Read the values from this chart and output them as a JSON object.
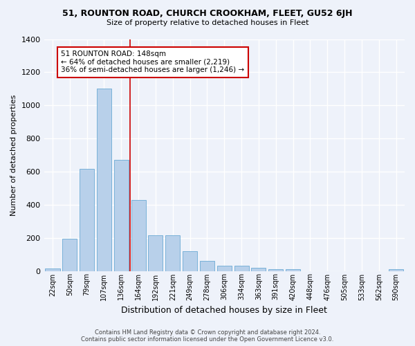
{
  "title": "51, ROUNTON ROAD, CHURCH CROOKHAM, FLEET, GU52 6JH",
  "subtitle": "Size of property relative to detached houses in Fleet",
  "xlabel": "Distribution of detached houses by size in Fleet",
  "ylabel": "Number of detached properties",
  "bar_color": "#b8d0ea",
  "bar_edge_color": "#6aaad4",
  "background_color": "#eef2fa",
  "grid_color": "#ffffff",
  "categories": [
    "22sqm",
    "50sqm",
    "79sqm",
    "107sqm",
    "136sqm",
    "164sqm",
    "192sqm",
    "221sqm",
    "249sqm",
    "278sqm",
    "306sqm",
    "334sqm",
    "363sqm",
    "391sqm",
    "420sqm",
    "448sqm",
    "476sqm",
    "505sqm",
    "533sqm",
    "562sqm",
    "590sqm"
  ],
  "values": [
    15,
    195,
    615,
    1100,
    670,
    430,
    215,
    215,
    120,
    60,
    30,
    30,
    20,
    12,
    12,
    0,
    0,
    0,
    0,
    0,
    10
  ],
  "ylim": [
    0,
    1400
  ],
  "yticks": [
    0,
    200,
    400,
    600,
    800,
    1000,
    1200,
    1400
  ],
  "property_line_x": 4.5,
  "property_line_color": "#cc0000",
  "annotation_text": "51 ROUNTON ROAD: 148sqm\n← 64% of detached houses are smaller (2,219)\n36% of semi-detached houses are larger (1,246) →",
  "annotation_box_color": "#ffffff",
  "annotation_box_edge_color": "#cc0000",
  "footer_line1": "Contains HM Land Registry data © Crown copyright and database right 2024.",
  "footer_line2": "Contains public sector information licensed under the Open Government Licence v3.0."
}
